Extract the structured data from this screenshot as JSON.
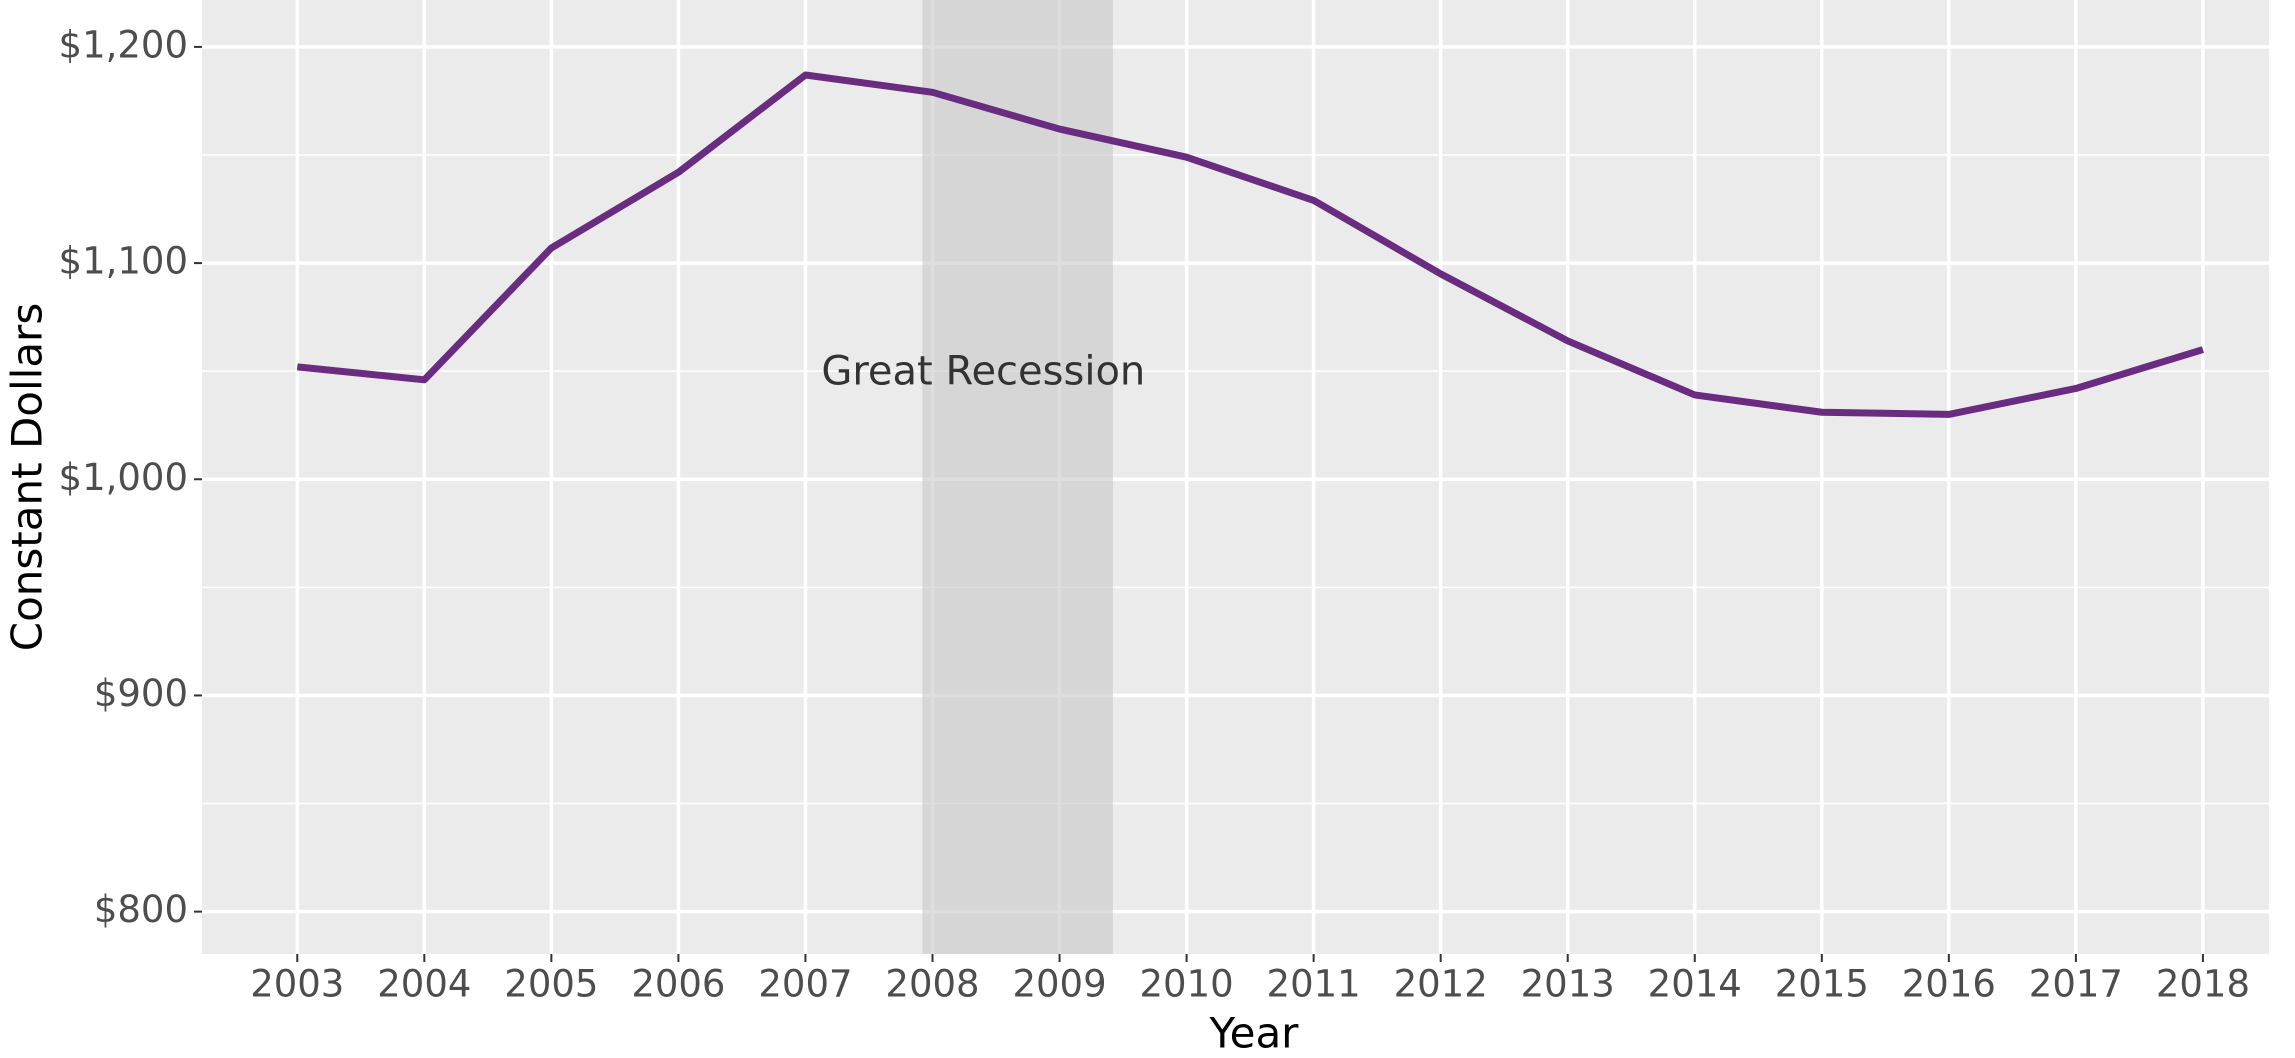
{
  "chart_data": {
    "type": "line",
    "x": [
      2003,
      2004,
      2005,
      2006,
      2007,
      2008,
      2009,
      2010,
      2011,
      2012,
      2013,
      2014,
      2015,
      2016,
      2017,
      2018
    ],
    "series": [
      {
        "color": "#6a2c80",
        "values": [
          1052,
          1046,
          1107,
          1142,
          1187,
          1179,
          1162,
          1149,
          1129,
          1095,
          1064,
          1039,
          1031,
          1030,
          1042,
          1060
        ]
      }
    ],
    "xlim": [
      2002.25,
      2018.52
    ],
    "xticks": [
      2003,
      2004,
      2005,
      2006,
      2007,
      2008,
      2009,
      2010,
      2011,
      2012,
      2013,
      2014,
      2015,
      2016,
      2017,
      2018
    ],
    "ylim": [
      780.4,
      1221.7
    ],
    "yticks": [
      {
        "value": 800,
        "label": "$800"
      },
      {
        "value": 900,
        "label": "$900"
      },
      {
        "value": 1000,
        "label": "$1,000"
      },
      {
        "value": 1100,
        "label": "$1,100"
      },
      {
        "value": 1200,
        "label": "$1,200"
      }
    ],
    "yminorticks": [
      850,
      950,
      1050,
      1150
    ],
    "xlabel": "Year",
    "ylabel": "Constant Dollars",
    "grid": true,
    "shaded_region": {
      "x": [
        2007.92,
        2009.42
      ],
      "color": "#c8c8c8",
      "label": "Great Recession",
      "label_x": 2008.4,
      "label_y": 1049
    }
  }
}
